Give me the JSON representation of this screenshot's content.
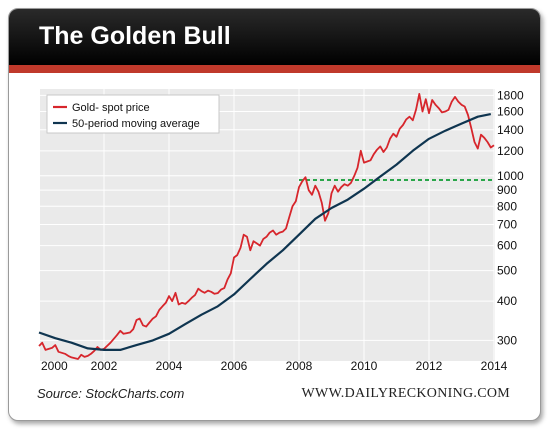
{
  "header": {
    "title": "The Golden Bull"
  },
  "footer": {
    "source": "Source: StockCharts.com",
    "brand": "WWW.DAILYRECKONING.COM"
  },
  "colors": {
    "title_bar": "#111111",
    "accent_stripe": "#c0392b",
    "gold_line": "#d7262c",
    "ma_line": "#0f3550",
    "reference_line": "#2aa64a",
    "plot_background": "#eaeaea"
  },
  "chart_data": {
    "type": "line",
    "title": "The Golden Bull",
    "y_scale": "log",
    "xlim": [
      2000,
      2014
    ],
    "ylim": [
      260,
      1900
    ],
    "x_ticks": [
      "2000",
      "2002",
      "2004",
      "2006",
      "2008",
      "2010",
      "2012",
      "2014"
    ],
    "y_ticks": [
      "300",
      "400",
      "500",
      "600",
      "700",
      "800",
      "900",
      "1000",
      "1200",
      "1400",
      "1600",
      "1800"
    ],
    "grid": true,
    "legend_position": "top-left",
    "reference_line": {
      "y": 970,
      "x_start": 2008,
      "x_end": 2014,
      "style": "dashed"
    },
    "series": [
      {
        "name": "Gold- spot price",
        "color": "#d7262c",
        "points": [
          [
            2000.0,
            288
          ],
          [
            2000.1,
            295
          ],
          [
            2000.2,
            280
          ],
          [
            2000.4,
            284
          ],
          [
            2000.5,
            290
          ],
          [
            2000.6,
            276
          ],
          [
            2000.8,
            272
          ],
          [
            2000.9,
            268
          ],
          [
            2001.0,
            265
          ],
          [
            2001.2,
            262
          ],
          [
            2001.3,
            270
          ],
          [
            2001.4,
            266
          ],
          [
            2001.5,
            268
          ],
          [
            2001.6,
            272
          ],
          [
            2001.7,
            278
          ],
          [
            2001.8,
            286
          ],
          [
            2001.9,
            280
          ],
          [
            2002.0,
            282
          ],
          [
            2002.2,
            295
          ],
          [
            2002.4,
            312
          ],
          [
            2002.5,
            322
          ],
          [
            2002.6,
            315
          ],
          [
            2002.8,
            318
          ],
          [
            2002.9,
            326
          ],
          [
            2003.0,
            348
          ],
          [
            2003.1,
            352
          ],
          [
            2003.2,
            335
          ],
          [
            2003.3,
            332
          ],
          [
            2003.4,
            342
          ],
          [
            2003.5,
            352
          ],
          [
            2003.6,
            358
          ],
          [
            2003.7,
            375
          ],
          [
            2003.8,
            385
          ],
          [
            2003.9,
            395
          ],
          [
            2004.0,
            415
          ],
          [
            2004.1,
            400
          ],
          [
            2004.2,
            425
          ],
          [
            2004.3,
            390
          ],
          [
            2004.4,
            395
          ],
          [
            2004.5,
            392
          ],
          [
            2004.6,
            400
          ],
          [
            2004.7,
            410
          ],
          [
            2004.8,
            418
          ],
          [
            2004.9,
            438
          ],
          [
            2005.0,
            430
          ],
          [
            2005.1,
            425
          ],
          [
            2005.2,
            432
          ],
          [
            2005.3,
            428
          ],
          [
            2005.4,
            422
          ],
          [
            2005.5,
            424
          ],
          [
            2005.6,
            435
          ],
          [
            2005.7,
            440
          ],
          [
            2005.8,
            468
          ],
          [
            2005.9,
            490
          ],
          [
            2006.0,
            550
          ],
          [
            2006.1,
            560
          ],
          [
            2006.2,
            590
          ],
          [
            2006.3,
            650
          ],
          [
            2006.4,
            640
          ],
          [
            2006.5,
            580
          ],
          [
            2006.6,
            620
          ],
          [
            2006.7,
            610
          ],
          [
            2006.8,
            600
          ],
          [
            2006.9,
            630
          ],
          [
            2007.0,
            640
          ],
          [
            2007.1,
            660
          ],
          [
            2007.2,
            670
          ],
          [
            2007.3,
            650
          ],
          [
            2007.4,
            660
          ],
          [
            2007.5,
            665
          ],
          [
            2007.6,
            680
          ],
          [
            2007.7,
            740
          ],
          [
            2007.8,
            800
          ],
          [
            2007.9,
            830
          ],
          [
            2008.0,
            920
          ],
          [
            2008.1,
            960
          ],
          [
            2008.2,
            990
          ],
          [
            2008.3,
            900
          ],
          [
            2008.4,
            870
          ],
          [
            2008.5,
            930
          ],
          [
            2008.6,
            890
          ],
          [
            2008.7,
            820
          ],
          [
            2008.8,
            720
          ],
          [
            2008.9,
            760
          ],
          [
            2009.0,
            880
          ],
          [
            2009.1,
            930
          ],
          [
            2009.2,
            890
          ],
          [
            2009.3,
            920
          ],
          [
            2009.4,
            940
          ],
          [
            2009.5,
            930
          ],
          [
            2009.6,
            950
          ],
          [
            2009.7,
            1000
          ],
          [
            2009.8,
            1060
          ],
          [
            2009.9,
            1200
          ],
          [
            2010.0,
            1100
          ],
          [
            2010.1,
            1110
          ],
          [
            2010.2,
            1120
          ],
          [
            2010.3,
            1170
          ],
          [
            2010.4,
            1210
          ],
          [
            2010.5,
            1240
          ],
          [
            2010.6,
            1190
          ],
          [
            2010.7,
            1230
          ],
          [
            2010.8,
            1310
          ],
          [
            2010.9,
            1360
          ],
          [
            2011.0,
            1330
          ],
          [
            2011.1,
            1410
          ],
          [
            2011.2,
            1450
          ],
          [
            2011.3,
            1510
          ],
          [
            2011.4,
            1540
          ],
          [
            2011.5,
            1500
          ],
          [
            2011.6,
            1620
          ],
          [
            2011.7,
            1820
          ],
          [
            2011.8,
            1600
          ],
          [
            2011.9,
            1750
          ],
          [
            2012.0,
            1580
          ],
          [
            2012.1,
            1740
          ],
          [
            2012.2,
            1680
          ],
          [
            2012.3,
            1640
          ],
          [
            2012.4,
            1590
          ],
          [
            2012.5,
            1600
          ],
          [
            2012.6,
            1620
          ],
          [
            2012.7,
            1720
          ],
          [
            2012.8,
            1780
          ],
          [
            2012.9,
            1720
          ],
          [
            2013.0,
            1680
          ],
          [
            2013.1,
            1660
          ],
          [
            2013.2,
            1560
          ],
          [
            2013.3,
            1420
          ],
          [
            2013.4,
            1280
          ],
          [
            2013.5,
            1220
          ],
          [
            2013.6,
            1350
          ],
          [
            2013.7,
            1320
          ],
          [
            2013.8,
            1280
          ],
          [
            2013.9,
            1230
          ],
          [
            2014.0,
            1250
          ]
        ]
      },
      {
        "name": "50-period moving average",
        "color": "#0f3550",
        "points": [
          [
            2000.0,
            318
          ],
          [
            2000.5,
            305
          ],
          [
            2001.0,
            295
          ],
          [
            2001.5,
            283
          ],
          [
            2002.0,
            280
          ],
          [
            2002.5,
            280
          ],
          [
            2003.0,
            290
          ],
          [
            2003.5,
            300
          ],
          [
            2004.0,
            315
          ],
          [
            2004.5,
            338
          ],
          [
            2005.0,
            362
          ],
          [
            2005.5,
            385
          ],
          [
            2006.0,
            420
          ],
          [
            2006.5,
            470
          ],
          [
            2007.0,
            525
          ],
          [
            2007.5,
            580
          ],
          [
            2008.0,
            650
          ],
          [
            2008.5,
            730
          ],
          [
            2009.0,
            790
          ],
          [
            2009.5,
            840
          ],
          [
            2010.0,
            910
          ],
          [
            2010.5,
            995
          ],
          [
            2011.0,
            1085
          ],
          [
            2011.5,
            1200
          ],
          [
            2012.0,
            1310
          ],
          [
            2012.5,
            1390
          ],
          [
            2013.0,
            1465
          ],
          [
            2013.5,
            1540
          ],
          [
            2013.9,
            1570
          ]
        ]
      }
    ]
  }
}
